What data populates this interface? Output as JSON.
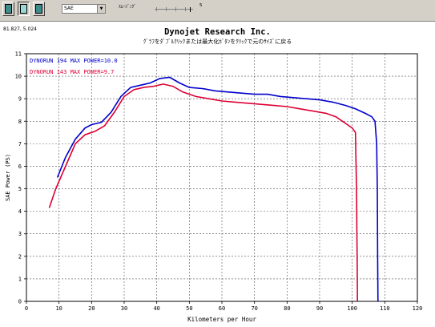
{
  "toolbar": {
    "dropdown_value": "SAE",
    "smoothing_label": "ｽﾑｰｼﾞﾝｸﾞ",
    "smoothing_value": "5"
  },
  "coord_readout": "81.827, 5.024",
  "chart_data": {
    "type": "line",
    "title": "Dynojet  Research  Inc.",
    "subtitle": "ｸﾞﾗﾌをﾀﾞﾌﾞﾙｸﾘｯｸまたは最大化ﾎﾞﾀﾝをｸﾘｯｸで元のｻｲｽﾞに戻る",
    "xlabel": "Kilometers per Hour",
    "ylabel": "SAE Power (PS)",
    "xlim": [
      0,
      120
    ],
    "ylim": [
      0,
      11
    ],
    "xticks": [
      0,
      10,
      20,
      30,
      40,
      50,
      60,
      70,
      80,
      90,
      100,
      110,
      120
    ],
    "yticks": [
      0,
      1,
      2,
      3,
      4,
      5,
      6,
      7,
      8,
      9,
      10,
      11
    ],
    "grid": true,
    "series": [
      {
        "name": "DYNORUN 194  MAX POWER=10.0",
        "color": "#0000cc",
        "points": [
          [
            9.5,
            5.5
          ],
          [
            12,
            6.4
          ],
          [
            15,
            7.2
          ],
          [
            18,
            7.7
          ],
          [
            20,
            7.85
          ],
          [
            23,
            7.95
          ],
          [
            26,
            8.4
          ],
          [
            29,
            9.1
          ],
          [
            32,
            9.5
          ],
          [
            35,
            9.6
          ],
          [
            38,
            9.7
          ],
          [
            41,
            9.9
          ],
          [
            44,
            9.95
          ],
          [
            47,
            9.7
          ],
          [
            50,
            9.5
          ],
          [
            54,
            9.45
          ],
          [
            58,
            9.35
          ],
          [
            62,
            9.3
          ],
          [
            66,
            9.25
          ],
          [
            70,
            9.2
          ],
          [
            74,
            9.2
          ],
          [
            78,
            9.1
          ],
          [
            82,
            9.05
          ],
          [
            86,
            9.0
          ],
          [
            90,
            8.95
          ],
          [
            94,
            8.85
          ],
          [
            98,
            8.7
          ],
          [
            101,
            8.55
          ],
          [
            104,
            8.35
          ],
          [
            106,
            8.2
          ],
          [
            107,
            8.0
          ],
          [
            107.5,
            7.0
          ],
          [
            107.7,
            5.0
          ],
          [
            107.8,
            2.0
          ],
          [
            107.9,
            0.0
          ]
        ]
      },
      {
        "name": "DYNORUN 143  MAX POWER=9.7",
        "color": "#dd0033",
        "points": [
          [
            7,
            4.15
          ],
          [
            9,
            5.0
          ],
          [
            12,
            6.0
          ],
          [
            15,
            7.0
          ],
          [
            18,
            7.4
          ],
          [
            21,
            7.55
          ],
          [
            24,
            7.8
          ],
          [
            27,
            8.4
          ],
          [
            30,
            9.1
          ],
          [
            33,
            9.4
          ],
          [
            36,
            9.5
          ],
          [
            39,
            9.55
          ],
          [
            42,
            9.65
          ],
          [
            45,
            9.55
          ],
          [
            48,
            9.3
          ],
          [
            52,
            9.1
          ],
          [
            56,
            9.0
          ],
          [
            60,
            8.9
          ],
          [
            64,
            8.85
          ],
          [
            68,
            8.8
          ],
          [
            72,
            8.75
          ],
          [
            76,
            8.7
          ],
          [
            80,
            8.65
          ],
          [
            84,
            8.55
          ],
          [
            88,
            8.45
          ],
          [
            92,
            8.35
          ],
          [
            95,
            8.2
          ],
          [
            97,
            8.0
          ],
          [
            99,
            7.8
          ],
          [
            100,
            7.7
          ],
          [
            101,
            7.5
          ],
          [
            101.3,
            5.0
          ],
          [
            101.5,
            2.0
          ],
          [
            101.6,
            0.0
          ]
        ]
      }
    ]
  }
}
